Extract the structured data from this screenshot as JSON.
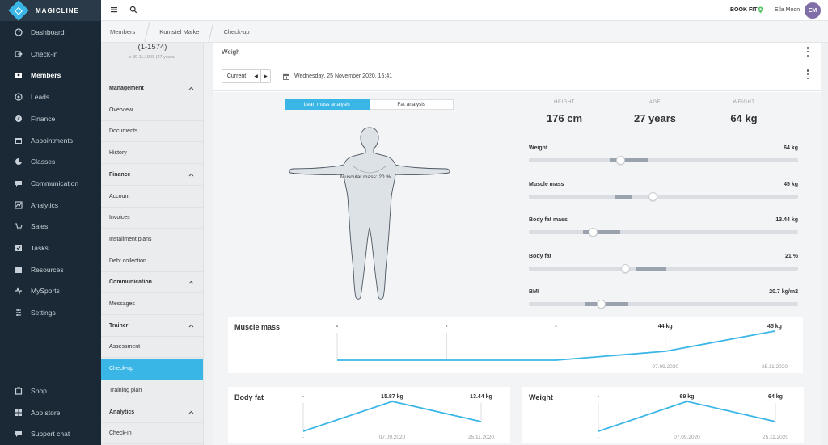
{
  "app": {
    "logo_text": "MAGICLINE",
    "brand_color": "#3ab6e6",
    "nav_bg": "#1b2936",
    "nav_items": [
      {
        "label": "Dashboard",
        "icon": "dashboard-icon"
      },
      {
        "label": "Check-in",
        "icon": "check-in-icon"
      },
      {
        "label": "Members",
        "icon": "members-icon",
        "active": true
      },
      {
        "label": "Leads",
        "icon": "leads-icon"
      },
      {
        "label": "Finance",
        "icon": "finance-icon"
      },
      {
        "label": "Appointments",
        "icon": "calendar-icon"
      },
      {
        "label": "Classes",
        "icon": "classes-icon"
      },
      {
        "label": "Communication",
        "icon": "chat-icon"
      },
      {
        "label": "Analytics",
        "icon": "analytics-icon"
      },
      {
        "label": "Sales",
        "icon": "cart-icon"
      },
      {
        "label": "Tasks",
        "icon": "tasks-icon"
      },
      {
        "label": "Resources",
        "icon": "resources-icon"
      },
      {
        "label": "MySports",
        "icon": "mysports-icon"
      },
      {
        "label": "Settings",
        "icon": "settings-icon"
      }
    ],
    "nav_bottom": [
      {
        "label": "Shop",
        "icon": "shop-icon"
      },
      {
        "label": "App store",
        "icon": "app-store-icon"
      },
      {
        "label": "Support chat",
        "icon": "support-chat-icon"
      }
    ]
  },
  "header": {
    "studio": "BOOK FIT",
    "user_name": "Ella Moon",
    "avatar_initials": "EM"
  },
  "breadcrumb": [
    "Members",
    "Kumstel Maike",
    "Check-up"
  ],
  "member": {
    "id": "(1-1574)",
    "dob": "30.11.1993 (27 years)"
  },
  "sub_menu": [
    {
      "label": "Management",
      "type": "section"
    },
    {
      "label": "Overview"
    },
    {
      "label": "Documents"
    },
    {
      "label": "History"
    },
    {
      "label": "Finance",
      "type": "section"
    },
    {
      "label": "Account"
    },
    {
      "label": "Invoices"
    },
    {
      "label": "Installment plans"
    },
    {
      "label": "Debt collection"
    },
    {
      "label": "Communication",
      "type": "section"
    },
    {
      "label": "Messages"
    },
    {
      "label": "Trainer",
      "type": "section"
    },
    {
      "label": "Assessment"
    },
    {
      "label": "Check-up",
      "active": true
    },
    {
      "label": "Training plan"
    },
    {
      "label": "Analytics",
      "type": "section"
    },
    {
      "label": "Check-in"
    }
  ],
  "panel": {
    "title": "Weigh",
    "current_label": "Current",
    "prev_glyph": "◀",
    "next_glyph": "▶",
    "date": "Wednesday, 25 November 2020, 15:41"
  },
  "analysis_tabs": [
    "Lean mass analysis",
    "Fat analysis"
  ],
  "body": {
    "label": "Muscular mass: 20 %"
  },
  "stats": [
    {
      "label": "HEIGHT",
      "value": "176 cm"
    },
    {
      "label": "AGE",
      "value": "27 years"
    },
    {
      "label": "WEIGHT",
      "value": "64 kg"
    }
  ],
  "metrics": [
    {
      "name": "Weight",
      "value": "64 kg",
      "level": 0.34,
      "band": [
        0.3,
        0.44
      ]
    },
    {
      "name": "Muscle mass",
      "value": "45 kg",
      "level": 0.46,
      "band": [
        0.32,
        0.38
      ]
    },
    {
      "name": "Body fat mass",
      "value": "13.44 kg",
      "level": 0.24,
      "band": [
        0.2,
        0.34
      ]
    },
    {
      "name": "Body fat",
      "value": "21 %",
      "level": 0.36,
      "band": [
        0.4,
        0.51
      ]
    },
    {
      "name": "BMI",
      "value": "20.7 kg/m2",
      "level": 0.27,
      "band": [
        0.21,
        0.37
      ]
    }
  ],
  "chart_data": [
    {
      "type": "line",
      "title": "Muscle mass",
      "x": [
        "-",
        "-",
        "-",
        "07.09.2020",
        "25.11.2020"
      ],
      "values": [
        null,
        null,
        null,
        44,
        45
      ],
      "value_labels": [
        "-",
        "-",
        "-",
        "44 kg",
        "45 kg"
      ],
      "color": "#3ab6e6"
    },
    {
      "type": "line",
      "title": "Body fat",
      "x": [
        "-",
        "07.09.2020",
        "25.11.2020"
      ],
      "values": [
        null,
        15.87,
        13.44
      ],
      "value_labels": [
        "-",
        "15.87 kg",
        "13.44 kg"
      ],
      "color": "#3ab6e6"
    },
    {
      "type": "line",
      "title": "Weight",
      "x": [
        "-",
        "07.09.2020",
        "25.11.2020"
      ],
      "values": [
        null,
        69,
        64
      ],
      "value_labels": [
        "-",
        "69 kg",
        "64 kg"
      ],
      "color": "#3ab6e6"
    }
  ]
}
